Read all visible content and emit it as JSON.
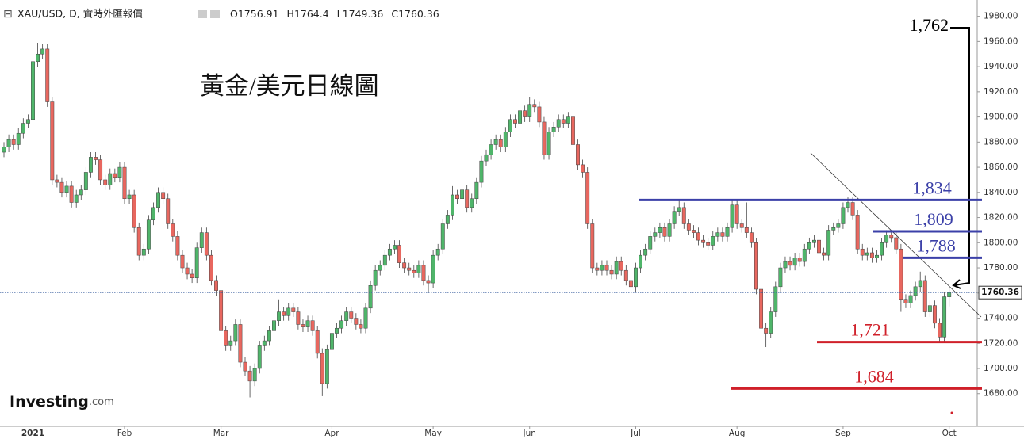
{
  "chart_data": {
    "type": "candlestick",
    "title": "黃金/美元日線圖",
    "symbol": "XAU/USD, D, 實時外匯報價",
    "ohlc_prefixes": [
      "O",
      "H",
      "L",
      "C"
    ],
    "logo": "Investing",
    "logo_suffix": ".com",
    "up_color": "#4fb56a",
    "down_color": "#e8675f",
    "categories": [
      null,
      null,
      null,
      null,
      null,
      null,
      "2021",
      null,
      null,
      null,
      null,
      null,
      null,
      null,
      null,
      null,
      null,
      null,
      null,
      null,
      null,
      null,
      null,
      null,
      null,
      "Feb",
      null,
      null,
      null,
      null,
      null,
      null,
      null,
      null,
      null,
      null,
      null,
      null,
      null,
      null,
      null,
      null,
      null,
      null,
      null,
      "Mar",
      null,
      null,
      null,
      null,
      null,
      null,
      null,
      null,
      null,
      null,
      null,
      null,
      null,
      null,
      null,
      null,
      null,
      null,
      null,
      null,
      null,
      null,
      "Apr",
      null,
      null,
      null,
      null,
      null,
      null,
      null,
      null,
      null,
      null,
      null,
      null,
      null,
      null,
      null,
      null,
      null,
      null,
      null,
      null,
      "May",
      null,
      null,
      null,
      null,
      null,
      null,
      null,
      null,
      null,
      null,
      null,
      null,
      null,
      null,
      null,
      null,
      null,
      null,
      null,
      "Jun",
      null,
      null,
      null,
      null,
      null,
      null,
      null,
      null,
      null,
      null,
      null,
      null,
      null,
      null,
      null,
      null,
      null,
      null,
      null,
      null,
      null,
      "Jul",
      null,
      null,
      null,
      null,
      null,
      null,
      null,
      null,
      null,
      null,
      null,
      null,
      null,
      null,
      null,
      null,
      null,
      null,
      null,
      null,
      "Aug",
      null,
      null,
      null,
      null,
      null,
      null,
      null,
      null,
      null,
      null,
      null,
      null,
      null,
      null,
      null,
      null,
      null,
      null,
      null,
      null,
      null,
      "Sep",
      null,
      null,
      null,
      null,
      null,
      null,
      null,
      null,
      null,
      null,
      null,
      null,
      null,
      null,
      null,
      null,
      null,
      null,
      null,
      null,
      null,
      "Oct"
    ],
    "open": [
      1872,
      1876,
      1882,
      1878,
      1887,
      1895,
      1898,
      1944,
      1950,
      1954,
      1912,
      1850,
      1848,
      1840,
      1845,
      1832,
      1838,
      1842,
      1856,
      1868,
      1866,
      1850,
      1846,
      1855,
      1852,
      1860,
      1835,
      1838,
      1812,
      1790,
      1795,
      1818,
      1828,
      1840,
      1835,
      1815,
      1805,
      1790,
      1780,
      1775,
      1772,
      1796,
      1808,
      1790,
      1770,
      1762,
      1730,
      1718,
      1722,
      1735,
      1705,
      1698,
      1690,
      1700,
      1718,
      1722,
      1730,
      1738,
      1745,
      1742,
      1748,
      1745,
      1735,
      1733,
      1738,
      1730,
      1712,
      1688,
      1715,
      1728,
      1732,
      1738,
      1745,
      1740,
      1735,
      1732,
      1748,
      1766,
      1778,
      1782,
      1790,
      1795,
      1798,
      1784,
      1780,
      1778,
      1776,
      1782,
      1770,
      1768,
      1790,
      1795,
      1815,
      1822,
      1838,
      1835,
      1842,
      1828,
      1835,
      1848,
      1865,
      1870,
      1878,
      1882,
      1876,
      1888,
      1898,
      1895,
      1905,
      1900,
      1910,
      1908,
      1896,
      1870,
      1888,
      1892,
      1898,
      1895,
      1900,
      1878,
      1862,
      1856,
      1815,
      1780,
      1778,
      1782,
      1778,
      1775,
      1785,
      1778,
      1770,
      1765,
      1780,
      1790,
      1795,
      1805,
      1808,
      1812,
      1805,
      1815,
      1825,
      1828,
      1815,
      1810,
      1808,
      1802,
      1800,
      1798,
      1805,
      1808,
      1805,
      1812,
      1830,
      1815,
      1812,
      1808,
      1800,
      1763,
      1732,
      1728,
      1745,
      1765,
      1780,
      1785,
      1782,
      1788,
      1785,
      1795,
      1800,
      1802,
      1792,
      1790,
      1810,
      1812,
      1815,
      1828,
      1832,
      1822,
      1795,
      1790,
      1792,
      1788,
      1790,
      1800,
      1806,
      1804,
      1795,
      1755,
      1752,
      1758,
      1765,
      1770,
      1745,
      1750,
      1736,
      1725,
      1756.91
    ],
    "high": [
      1880,
      1886,
      1886,
      1891,
      1899,
      1902,
      1948,
      1959,
      1958,
      1958,
      1916,
      1854,
      1852,
      1849,
      1849,
      1842,
      1846,
      1860,
      1872,
      1872,
      1870,
      1854,
      1859,
      1859,
      1864,
      1864,
      1842,
      1842,
      1816,
      1799,
      1822,
      1832,
      1844,
      1844,
      1839,
      1819,
      1809,
      1794,
      1784,
      1779,
      1800,
      1812,
      1812,
      1794,
      1774,
      1766,
      1734,
      1726,
      1739,
      1739,
      1709,
      1702,
      1704,
      1722,
      1726,
      1734,
      1742,
      1755,
      1749,
      1752,
      1752,
      1749,
      1739,
      1742,
      1742,
      1734,
      1716,
      1719,
      1732,
      1736,
      1742,
      1749,
      1749,
      1744,
      1739,
      1752,
      1770,
      1782,
      1786,
      1794,
      1799,
      1802,
      1802,
      1788,
      1784,
      1782,
      1786,
      1786,
      1774,
      1794,
      1799,
      1819,
      1826,
      1845,
      1842,
      1846,
      1846,
      1839,
      1852,
      1869,
      1874,
      1882,
      1886,
      1886,
      1892,
      1902,
      1902,
      1912,
      1909,
      1916,
      1914,
      1912,
      1900,
      1892,
      1896,
      1902,
      1902,
      1904,
      1904,
      1882,
      1866,
      1860,
      1819,
      1784,
      1786,
      1786,
      1782,
      1789,
      1789,
      1782,
      1774,
      1784,
      1794,
      1799,
      1809,
      1812,
      1816,
      1816,
      1819,
      1829,
      1834,
      1832,
      1819,
      1814,
      1812,
      1806,
      1804,
      1809,
      1812,
      1812,
      1816,
      1834,
      1834,
      1819,
      1832,
      1812,
      1804,
      1767,
      1736,
      1749,
      1769,
      1784,
      1789,
      1789,
      1792,
      1792,
      1799,
      1804,
      1806,
      1806,
      1796,
      1814,
      1816,
      1819,
      1832,
      1836,
      1836,
      1826,
      1799,
      1796,
      1796,
      1794,
      1804,
      1810,
      1810,
      1808,
      1799,
      1759,
      1762,
      1769,
      1777,
      1774,
      1754,
      1754,
      1740,
      1761,
      1764.4
    ],
    "low": [
      1868,
      1872,
      1874,
      1874,
      1883,
      1891,
      1894,
      1940,
      1946,
      1908,
      1846,
      1844,
      1836,
      1836,
      1828,
      1828,
      1834,
      1838,
      1852,
      1862,
      1846,
      1842,
      1842,
      1848,
      1848,
      1831,
      1831,
      1808,
      1786,
      1786,
      1791,
      1814,
      1824,
      1831,
      1811,
      1801,
      1786,
      1776,
      1771,
      1768,
      1768,
      1792,
      1786,
      1766,
      1758,
      1726,
      1714,
      1714,
      1718,
      1701,
      1694,
      1677,
      1686,
      1696,
      1714,
      1718,
      1726,
      1734,
      1738,
      1738,
      1741,
      1731,
      1729,
      1729,
      1726,
      1708,
      1678,
      1684,
      1711,
      1724,
      1728,
      1734,
      1736,
      1731,
      1728,
      1728,
      1744,
      1762,
      1774,
      1778,
      1786,
      1791,
      1780,
      1776,
      1774,
      1772,
      1772,
      1766,
      1760,
      1764,
      1786,
      1791,
      1811,
      1818,
      1831,
      1831,
      1824,
      1824,
      1831,
      1844,
      1861,
      1866,
      1874,
      1872,
      1872,
      1884,
      1891,
      1891,
      1896,
      1896,
      1904,
      1892,
      1866,
      1866,
      1884,
      1888,
      1891,
      1891,
      1874,
      1858,
      1852,
      1811,
      1776,
      1774,
      1774,
      1774,
      1771,
      1771,
      1774,
      1766,
      1752,
      1761,
      1776,
      1786,
      1791,
      1801,
      1804,
      1801,
      1801,
      1811,
      1821,
      1811,
      1806,
      1804,
      1798,
      1796,
      1794,
      1794,
      1801,
      1801,
      1801,
      1808,
      1811,
      1808,
      1804,
      1796,
      1759,
      1684,
      1717,
      1724,
      1741,
      1761,
      1776,
      1778,
      1778,
      1781,
      1781,
      1791,
      1796,
      1788,
      1786,
      1786,
      1806,
      1808,
      1811,
      1824,
      1818,
      1791,
      1786,
      1786,
      1784,
      1784,
      1786,
      1796,
      1800,
      1791,
      1745,
      1748,
      1748,
      1754,
      1761,
      1741,
      1741,
      1732,
      1721,
      1721,
      1749.36
    ],
    "close": [
      1876,
      1882,
      1878,
      1887,
      1895,
      1898,
      1944,
      1950,
      1954,
      1912,
      1850,
      1848,
      1840,
      1845,
      1832,
      1838,
      1842,
      1856,
      1868,
      1866,
      1850,
      1846,
      1855,
      1852,
      1860,
      1835,
      1838,
      1812,
      1790,
      1795,
      1818,
      1828,
      1840,
      1835,
      1815,
      1805,
      1790,
      1780,
      1775,
      1772,
      1796,
      1808,
      1790,
      1770,
      1762,
      1730,
      1718,
      1722,
      1735,
      1705,
      1698,
      1690,
      1700,
      1718,
      1722,
      1730,
      1738,
      1745,
      1742,
      1748,
      1745,
      1735,
      1733,
      1738,
      1730,
      1712,
      1688,
      1715,
      1728,
      1732,
      1738,
      1745,
      1740,
      1735,
      1732,
      1748,
      1766,
      1778,
      1782,
      1790,
      1795,
      1798,
      1784,
      1780,
      1778,
      1776,
      1782,
      1770,
      1768,
      1790,
      1795,
      1815,
      1822,
      1838,
      1835,
      1842,
      1828,
      1835,
      1848,
      1865,
      1870,
      1878,
      1882,
      1876,
      1888,
      1898,
      1895,
      1905,
      1900,
      1910,
      1908,
      1896,
      1870,
      1888,
      1892,
      1898,
      1895,
      1900,
      1878,
      1862,
      1856,
      1815,
      1780,
      1778,
      1782,
      1778,
      1775,
      1785,
      1778,
      1770,
      1765,
      1780,
      1790,
      1795,
      1805,
      1808,
      1812,
      1805,
      1815,
      1825,
      1828,
      1815,
      1810,
      1808,
      1802,
      1800,
      1798,
      1805,
      1808,
      1805,
      1812,
      1830,
      1815,
      1812,
      1808,
      1800,
      1763,
      1732,
      1728,
      1745,
      1765,
      1780,
      1785,
      1782,
      1788,
      1785,
      1795,
      1800,
      1802,
      1792,
      1790,
      1810,
      1812,
      1815,
      1828,
      1832,
      1822,
      1795,
      1790,
      1792,
      1788,
      1790,
      1800,
      1806,
      1804,
      1795,
      1755,
      1752,
      1758,
      1765,
      1770,
      1745,
      1750,
      1736,
      1725,
      1757,
      1760.36
    ],
    "ylim": [
      1654,
      1993
    ],
    "yticks": [
      {
        "value": 1680,
        "label": "1680.00"
      },
      {
        "value": 1700,
        "label": "1700.00"
      },
      {
        "value": 1720,
        "label": "1720.00"
      },
      {
        "value": 1740,
        "label": "1740.00"
      },
      {
        "value": 1760,
        "label": "1760.00"
      },
      {
        "value": 1780,
        "label": "1780.00"
      },
      {
        "value": 1800,
        "label": "1800.00"
      },
      {
        "value": 1820,
        "label": "1820.00"
      },
      {
        "value": 1840,
        "label": "1840.00"
      },
      {
        "value": 1860,
        "label": "1860.00"
      },
      {
        "value": 1880,
        "label": "1880.00"
      },
      {
        "value": 1900,
        "label": "1900.00"
      },
      {
        "value": 1920,
        "label": "1920.00"
      },
      {
        "value": 1940,
        "label": "1940.00"
      },
      {
        "value": 1960,
        "label": "1960.00"
      },
      {
        "value": 1980,
        "label": "1980.00"
      }
    ],
    "levels": [
      {
        "value": 1834,
        "label": "1,834",
        "color": "#3b40a8"
      },
      {
        "value": 1809,
        "label": "1,809",
        "color": "#3b40a8"
      },
      {
        "value": 1788,
        "label": "1,788",
        "color": "#3b40a8"
      },
      {
        "value": 1721,
        "label": "1,721",
        "color": "#d0202a"
      },
      {
        "value": 1684,
        "label": "1,684",
        "color": "#d0202a"
      }
    ],
    "callout": {
      "value": 1762,
      "label": "1,762"
    }
  }
}
